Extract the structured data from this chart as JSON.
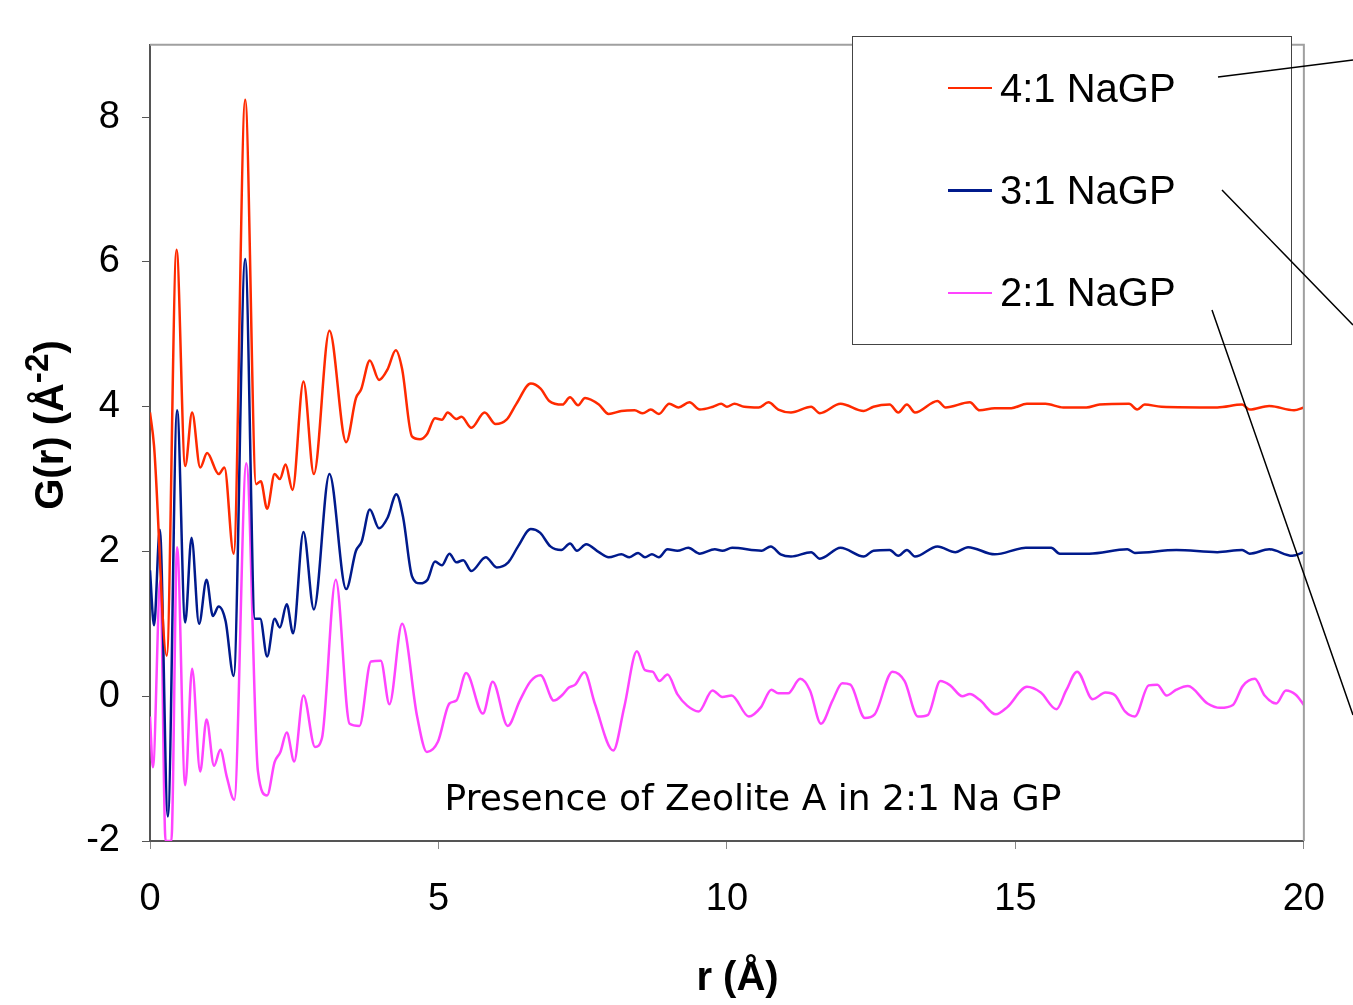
{
  "chart_data": {
    "type": "line",
    "xlabel": "r (Å)",
    "ylabel": "G(r) (Å$^{-2}$)",
    "annotations": [
      "Presence of Zeolite A in 2:1 Na GP"
    ],
    "xlim": [
      0,
      20
    ],
    "xticks": [
      0,
      5,
      10,
      15,
      20
    ],
    "ylim": [
      -2,
      9
    ],
    "yticks": [
      -2,
      0,
      2,
      4,
      6,
      8
    ],
    "legend": "top right",
    "series": [
      {
        "name": "4:1 NaGP",
        "color": "#ff2a00",
        "x": [
          0,
          0.07,
          0.29,
          0.46,
          0.61,
          0.73,
          0.87,
          0.99,
          1.19,
          1.29,
          1.45,
          1.65,
          1.84,
          1.92,
          2.03,
          2.16,
          2.25,
          2.35,
          2.47,
          2.66,
          2.84,
          3.11,
          3.4,
          3.57,
          3.66,
          3.81,
          3.97,
          4.12,
          4.26,
          4.37,
          4.54,
          4.68,
          4.8,
          4.94,
          5.06,
          5.16,
          5.31,
          5.4,
          5.57,
          5.8,
          5.99,
          6.18,
          6.35,
          6.6,
          6.77,
          6.92,
          7.15,
          7.28,
          7.42,
          7.54,
          7.78,
          7.95,
          8.17,
          8.4,
          8.54,
          8.68,
          8.82,
          9,
          9.16,
          9.35,
          9.53,
          9.76,
          9.9,
          10,
          10.13,
          10.3,
          10.55,
          10.72,
          10.89,
          11.11,
          11.46,
          11.61,
          11.97,
          12.37,
          12.54,
          12.82,
          12.97,
          13.12,
          13.26,
          13.65,
          13.79,
          14.21,
          14.38,
          14.64,
          14.93,
          15.2,
          15.52,
          15.83,
          16.23,
          16.46,
          16.97,
          17.11,
          17.24,
          17.53,
          18.5,
          18.93,
          19.06,
          19.4,
          19.83,
          20
        ],
        "values": [
          3.92,
          3.46,
          0.56,
          6.17,
          3.18,
          3.92,
          3.16,
          3.36,
          3.07,
          3.16,
          1.97,
          8.24,
          2.93,
          2.97,
          2.59,
          3.07,
          3,
          3.2,
          2.85,
          4.35,
          3.07,
          5.05,
          3.51,
          4.12,
          4.24,
          4.64,
          4.37,
          4.52,
          4.78,
          4.52,
          3.59,
          3.55,
          3.62,
          3.84,
          3.82,
          3.92,
          3.83,
          3.86,
          3.71,
          3.92,
          3.76,
          3.82,
          4.04,
          4.32,
          4.25,
          4.08,
          4.03,
          4.13,
          4.02,
          4.12,
          4.03,
          3.9,
          3.94,
          3.95,
          3.91,
          3.96,
          3.9,
          4.04,
          3.99,
          4.06,
          3.96,
          4,
          4.04,
          4,
          4.04,
          4,
          3.99,
          4.06,
          3.96,
          3.92,
          4,
          3.91,
          4.04,
          3.94,
          4,
          4.03,
          3.92,
          4.03,
          3.92,
          4.08,
          3.99,
          4.06,
          3.95,
          3.98,
          3.98,
          4.04,
          4.04,
          3.99,
          3.99,
          4.03,
          4.04,
          3.96,
          4.03,
          4,
          3.99,
          4.03,
          3.96,
          4.01,
          3.95,
          3.99
        ]
      },
      {
        "name": "3:1 NaGP",
        "color": "#001a8c",
        "x": [
          0,
          0.07,
          0.17,
          0.31,
          0.47,
          0.61,
          0.72,
          0.85,
          0.98,
          1.09,
          1.19,
          1.31,
          1.45,
          1.65,
          1.82,
          1.91,
          2.03,
          2.16,
          2.25,
          2.37,
          2.48,
          2.66,
          2.84,
          3.11,
          3.4,
          3.57,
          3.67,
          3.81,
          3.97,
          4.12,
          4.27,
          4.39,
          4.54,
          4.68,
          4.81,
          4.94,
          5.06,
          5.19,
          5.31,
          5.43,
          5.57,
          5.82,
          6.01,
          6.21,
          6.38,
          6.6,
          6.76,
          6.94,
          7.13,
          7.28,
          7.4,
          7.56,
          7.78,
          7.95,
          8.17,
          8.31,
          8.46,
          8.58,
          8.7,
          8.82,
          8.97,
          9.14,
          9.33,
          9.53,
          9.79,
          9.92,
          10.09,
          10.6,
          10.76,
          10.93,
          11.11,
          11.46,
          11.61,
          11.97,
          12.37,
          12.54,
          12.82,
          12.97,
          13.12,
          13.26,
          13.65,
          13.96,
          14.18,
          14.64,
          15.18,
          15.62,
          15.77,
          16.28,
          16.94,
          17.07,
          17.79,
          18.5,
          18.93,
          19.06,
          19.4,
          19.8,
          20
        ],
        "values": [
          1.74,
          0.98,
          2.3,
          -1.66,
          3.95,
          1.02,
          2.19,
          1,
          1.61,
          1.11,
          1.24,
          1.04,
          0.28,
          6.04,
          1.07,
          1.07,
          0.55,
          1.07,
          0.95,
          1.27,
          0.87,
          2.27,
          1.2,
          3.07,
          1.48,
          2.01,
          2.14,
          2.58,
          2.32,
          2.47,
          2.79,
          2.46,
          1.66,
          1.56,
          1.61,
          1.86,
          1.81,
          1.97,
          1.85,
          1.88,
          1.73,
          1.92,
          1.78,
          1.85,
          2.07,
          2.31,
          2.26,
          2.07,
          2.02,
          2.11,
          2.01,
          2.1,
          1.99,
          1.92,
          1.96,
          1.92,
          1.98,
          1.92,
          1.96,
          1.92,
          2.03,
          2.01,
          2.05,
          1.97,
          2.03,
          2.01,
          2.05,
          2.01,
          2.07,
          1.96,
          1.93,
          1.99,
          1.9,
          2.05,
          1.93,
          2.01,
          2.02,
          1.94,
          2.02,
          1.93,
          2.07,
          1.99,
          2.06,
          1.96,
          2.05,
          2.05,
          1.97,
          1.97,
          2.03,
          1.98,
          2.02,
          1.99,
          2.02,
          1.97,
          2.03,
          1.94,
          1.99
        ]
      },
      {
        "name": "2:1 NaGP",
        "color": "#ff44ff",
        "x": [
          0,
          0.05,
          0.18,
          0.27,
          0.37,
          0.47,
          0.61,
          0.73,
          0.87,
          0.98,
          1.11,
          1.22,
          1.33,
          1.46,
          1.67,
          1.87,
          2.03,
          2.16,
          2.26,
          2.37,
          2.5,
          2.66,
          2.86,
          2.98,
          3.22,
          3.46,
          3.63,
          3.83,
          4,
          4.15,
          4.37,
          4.63,
          4.8,
          4.99,
          5.19,
          5.31,
          5.48,
          5.77,
          5.94,
          6.2,
          6.41,
          6.6,
          6.77,
          7,
          7.15,
          7.26,
          7.37,
          7.53,
          7.71,
          8.03,
          8.22,
          8.44,
          8.58,
          8.71,
          8.83,
          8.97,
          9.14,
          9.31,
          9.51,
          9.75,
          9.92,
          10.08,
          10.38,
          10.59,
          10.77,
          10.89,
          11.06,
          11.27,
          11.44,
          11.63,
          11.83,
          12,
          12.14,
          12.39,
          12.56,
          12.87,
          13.08,
          13.31,
          13.48,
          13.7,
          13.87,
          14.08,
          14.21,
          14.38,
          14.66,
          14.86,
          15.2,
          15.44,
          15.71,
          15.88,
          16.07,
          16.34,
          16.56,
          16.73,
          16.9,
          17.07,
          17.31,
          17.46,
          17.62,
          17.79,
          17.99,
          18.33,
          18.55,
          18.77,
          18.94,
          19.15,
          19.32,
          19.52,
          19.69,
          19.86,
          20
        ],
        "values": [
          -0.28,
          -0.98,
          1.6,
          -2,
          -2,
          2.06,
          -1.23,
          0.38,
          -1.04,
          -0.32,
          -0.96,
          -0.74,
          -1.11,
          -1.43,
          3.22,
          -1.03,
          -1.37,
          -0.91,
          -0.77,
          -0.5,
          -0.9,
          0.01,
          -0.7,
          -0.58,
          1.61,
          -0.38,
          -0.41,
          0.48,
          0.49,
          -0.11,
          1,
          -0.28,
          -0.77,
          -0.63,
          -0.1,
          -0.06,
          0.32,
          -0.24,
          0.2,
          -0.41,
          -0.06,
          0.21,
          0.29,
          -0.06,
          0.02,
          0.12,
          0.16,
          0.33,
          -0.1,
          -0.75,
          -0.15,
          0.62,
          0.36,
          0.34,
          0.21,
          0.3,
          0.03,
          -0.13,
          -0.21,
          0.08,
          -0.01,
          0.01,
          -0.28,
          -0.15,
          0.09,
          0.04,
          0.04,
          0.24,
          0.08,
          -0.38,
          -0.06,
          0.18,
          0.16,
          -0.3,
          -0.25,
          0.34,
          0.21,
          -0.28,
          -0.26,
          0.21,
          0.15,
          0,
          0.03,
          -0.05,
          -0.25,
          -0.15,
          0.13,
          0.05,
          -0.18,
          0.08,
          0.34,
          -0.04,
          0.05,
          0.01,
          -0.21,
          -0.28,
          0.15,
          0.16,
          0.01,
          0.09,
          0.14,
          -0.1,
          -0.16,
          -0.12,
          0.14,
          0.24,
          0.01,
          -0.1,
          0.08,
          0.02,
          -0.12
        ]
      }
    ]
  }
}
